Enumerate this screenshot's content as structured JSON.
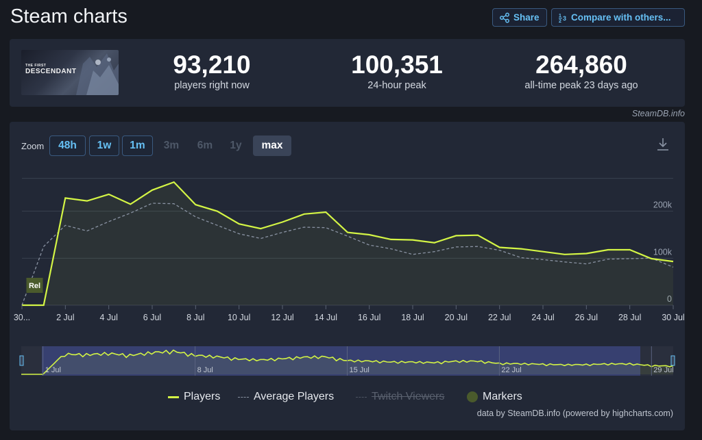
{
  "page": {
    "title": "Steam charts",
    "share_label": "Share",
    "compare_label": "Compare with others..."
  },
  "game": {
    "logo_line1": "THE FIRST",
    "logo_line2": "DESCENDANT"
  },
  "stats": [
    {
      "value": "93,210",
      "label": "players right now"
    },
    {
      "value": "100,351",
      "label": "24-hour peak"
    },
    {
      "value": "264,860",
      "label": "all-time peak 23 days ago"
    }
  ],
  "credit_top": "SteamDB.info",
  "zoom": {
    "label": "Zoom",
    "buttons": [
      {
        "label": "48h",
        "state": "active"
      },
      {
        "label": "1w",
        "state": "active"
      },
      {
        "label": "1m",
        "state": "active"
      },
      {
        "label": "3m",
        "state": "disabled"
      },
      {
        "label": "6m",
        "state": "disabled"
      },
      {
        "label": "1y",
        "state": "disabled"
      },
      {
        "label": "max",
        "state": "selected"
      }
    ]
  },
  "legend": {
    "players": "Players",
    "average": "Average Players",
    "twitch": "Twitch Viewers",
    "markers": "Markers"
  },
  "colors": {
    "players": "#d4f545",
    "average": "#8a93a3",
    "accent": "#66c0f4"
  },
  "credit_bottom": "data by SteamDB.info (powered by highcharts.com)",
  "chart_data": {
    "type": "line",
    "ylim": [
      0,
      300000
    ],
    "y_ticks": [
      {
        "value": 0,
        "label": "0"
      },
      {
        "value": 100000,
        "label": "100k"
      },
      {
        "value": 200000,
        "label": "200k"
      }
    ],
    "x_ticks": [
      {
        "day": 0,
        "label": "30..."
      },
      {
        "day": 2,
        "label": "2 Jul"
      },
      {
        "day": 4,
        "label": "4 Jul"
      },
      {
        "day": 6,
        "label": "6 Jul"
      },
      {
        "day": 8,
        "label": "8 Jul"
      },
      {
        "day": 10,
        "label": "10 Jul"
      },
      {
        "day": 12,
        "label": "12 Jul"
      },
      {
        "day": 14,
        "label": "14 Jul"
      },
      {
        "day": 16,
        "label": "16 Jul"
      },
      {
        "day": 18,
        "label": "18 Jul"
      },
      {
        "day": 20,
        "label": "20 Jul"
      },
      {
        "day": 22,
        "label": "22 Jul"
      },
      {
        "day": 24,
        "label": "24 Jul"
      },
      {
        "day": 26,
        "label": "26 Jul"
      },
      {
        "day": 28,
        "label": "28 Jul"
      },
      {
        "day": 30,
        "label": "30 Jul"
      }
    ],
    "series": [
      {
        "name": "Players",
        "points": [
          [
            0,
            0
          ],
          [
            1,
            0
          ],
          [
            2,
            228000
          ],
          [
            3,
            222000
          ],
          [
            4,
            236000
          ],
          [
            5,
            215000
          ],
          [
            6,
            245000
          ],
          [
            7,
            262000
          ],
          [
            8,
            214000
          ],
          [
            9,
            200000
          ],
          [
            10,
            173000
          ],
          [
            11,
            163000
          ],
          [
            12,
            177000
          ],
          [
            13,
            194000
          ],
          [
            14,
            198000
          ],
          [
            15,
            155000
          ],
          [
            16,
            150000
          ],
          [
            17,
            140000
          ],
          [
            18,
            139000
          ],
          [
            19,
            133000
          ],
          [
            20,
            148000
          ],
          [
            21,
            149000
          ],
          [
            22,
            123000
          ],
          [
            23,
            120000
          ],
          [
            24,
            114000
          ],
          [
            25,
            108000
          ],
          [
            26,
            110000
          ],
          [
            27,
            118000
          ],
          [
            28,
            118000
          ],
          [
            29,
            99000
          ],
          [
            30,
            93000
          ]
        ]
      },
      {
        "name": "Average Players",
        "points": [
          [
            0,
            0
          ],
          [
            1,
            125000
          ],
          [
            2,
            170000
          ],
          [
            3,
            158000
          ],
          [
            4,
            178000
          ],
          [
            5,
            196000
          ],
          [
            6,
            217000
          ],
          [
            7,
            216000
          ],
          [
            8,
            188000
          ],
          [
            9,
            170000
          ],
          [
            10,
            152000
          ],
          [
            11,
            142000
          ],
          [
            12,
            155000
          ],
          [
            13,
            166000
          ],
          [
            14,
            165000
          ],
          [
            15,
            147000
          ],
          [
            16,
            128000
          ],
          [
            17,
            120000
          ],
          [
            18,
            108000
          ],
          [
            19,
            114000
          ],
          [
            20,
            124000
          ],
          [
            21,
            125000
          ],
          [
            22,
            117000
          ],
          [
            23,
            101000
          ],
          [
            24,
            97000
          ],
          [
            25,
            92000
          ],
          [
            26,
            88000
          ],
          [
            27,
            98000
          ],
          [
            28,
            99000
          ],
          [
            29,
            100000
          ],
          [
            30,
            81000
          ]
        ]
      }
    ],
    "markers": [
      {
        "day": 0.3,
        "label": "Rel"
      }
    ],
    "navigator_ticks": [
      "1 Jul",
      "8 Jul",
      "15 Jul",
      "22 Jul",
      "29 Jul"
    ]
  }
}
